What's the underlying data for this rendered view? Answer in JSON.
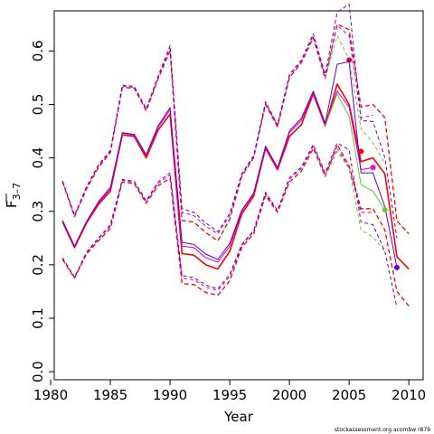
{
  "chart_data": {
    "type": "line",
    "xlabel": "Year",
    "ylabel": "F̅ 3–7",
    "ylabel_main": "F",
    "ylabel_sub": "3–7",
    "xlim": [
      1980.3,
      2011.2
    ],
    "ylim": [
      -0.015,
      0.675
    ],
    "x_ticks": [
      1980,
      1985,
      1990,
      1995,
      2000,
      2005,
      2010
    ],
    "y_ticks": [
      0.0,
      0.1,
      0.2,
      0.3,
      0.4,
      0.5,
      0.6
    ],
    "y_tick_labels": [
      "0.0",
      "0.1",
      "0.2",
      "0.3",
      "0.4",
      "0.5",
      "0.6"
    ],
    "grid": false,
    "footnote": "stockassessment.org acombw r879",
    "series": [
      {
        "color": "#ff0000",
        "width": 1.6,
        "dash": "solid",
        "endpoint": false,
        "x": [
          1981,
          1982,
          1983,
          1984,
          1985,
          1986,
          1987,
          1988,
          1989,
          1990,
          1991,
          1992,
          1993,
          1994,
          1995,
          1996,
          1997,
          1998,
          1999,
          2000,
          2001,
          2002,
          2003,
          2004,
          2005,
          2006,
          2007,
          2008,
          2009,
          2010
        ],
        "y": [
          0.28,
          0.232,
          0.278,
          0.313,
          0.338,
          0.443,
          0.44,
          0.4,
          0.452,
          0.482,
          0.221,
          0.218,
          0.2,
          0.192,
          0.225,
          0.295,
          0.328,
          0.418,
          0.378,
          0.44,
          0.462,
          0.52,
          0.46,
          0.538,
          0.5,
          0.393,
          0.4,
          0.37,
          0.215,
          0.192
        ]
      },
      {
        "color": "#ff0000",
        "width": 1.3,
        "dash": "5,3",
        "endpoint": false,
        "x": [
          1981,
          1982,
          1983,
          1984,
          1985,
          1986,
          1987,
          1988,
          1989,
          1990,
          1991,
          1992,
          1993,
          1994,
          1995,
          1996,
          1997,
          1998,
          1999,
          2000,
          2001,
          2002,
          2003,
          2004,
          2005,
          2006,
          2007,
          2008,
          2009,
          2010
        ],
        "y": [
          0.355,
          0.29,
          0.342,
          0.382,
          0.41,
          0.532,
          0.53,
          0.488,
          0.548,
          0.6,
          0.283,
          0.28,
          0.26,
          0.245,
          0.285,
          0.365,
          0.4,
          0.5,
          0.458,
          0.55,
          0.578,
          0.625,
          0.548,
          0.65,
          0.64,
          0.495,
          0.5,
          0.475,
          0.282,
          0.258
        ]
      },
      {
        "color": "#ff0000",
        "width": 1.3,
        "dash": "5,3",
        "endpoint": false,
        "x": [
          1981,
          1982,
          1983,
          1984,
          1985,
          1986,
          1987,
          1988,
          1989,
          1990,
          1991,
          1992,
          1993,
          1994,
          1995,
          1996,
          1997,
          1998,
          1999,
          2000,
          2001,
          2002,
          2003,
          2004,
          2005,
          2006,
          2007,
          2008,
          2009,
          2010
        ],
        "y": [
          0.21,
          0.175,
          0.22,
          0.245,
          0.268,
          0.355,
          0.352,
          0.315,
          0.348,
          0.362,
          0.165,
          0.163,
          0.148,
          0.143,
          0.17,
          0.232,
          0.258,
          0.33,
          0.298,
          0.355,
          0.375,
          0.418,
          0.365,
          0.425,
          0.385,
          0.305,
          0.305,
          0.265,
          0.15,
          0.123
        ]
      },
      {
        "color": "#cc00cc",
        "width": 1.0,
        "dash": "solid",
        "endpoint": true,
        "x": [
          1981,
          1982,
          1983,
          1984,
          1985,
          1986,
          1987,
          1988,
          1989,
          1990,
          1991,
          1992,
          1993,
          1994,
          1995,
          1996,
          1997,
          1998,
          1999,
          2000,
          2001,
          2002,
          2003,
          2004,
          2005,
          2006,
          2007
        ],
        "y": [
          0.282,
          0.234,
          0.28,
          0.316,
          0.342,
          0.446,
          0.442,
          0.404,
          0.457,
          0.49,
          0.235,
          0.232,
          0.213,
          0.205,
          0.235,
          0.3,
          0.332,
          0.42,
          0.38,
          0.447,
          0.47,
          0.522,
          0.462,
          0.525,
          0.495,
          0.378,
          0.382
        ]
      },
      {
        "color": "#cc00cc",
        "width": 1.0,
        "dash": "4,3",
        "endpoint": false,
        "x": [
          1981,
          1982,
          1983,
          1984,
          1985,
          1986,
          1987,
          1988,
          1989,
          1990,
          1991,
          1992,
          1993,
          1994,
          1995,
          1996,
          1997,
          1998,
          1999,
          2000,
          2001,
          2002,
          2003,
          2004,
          2005,
          2006,
          2007
        ],
        "y": [
          0.356,
          0.292,
          0.345,
          0.385,
          0.412,
          0.534,
          0.532,
          0.49,
          0.55,
          0.605,
          0.298,
          0.292,
          0.272,
          0.258,
          0.292,
          0.368,
          0.402,
          0.502,
          0.46,
          0.553,
          0.58,
          0.628,
          0.552,
          0.648,
          0.628,
          0.475,
          0.48
        ]
      },
      {
        "color": "#cc00cc",
        "width": 1.0,
        "dash": "4,3",
        "endpoint": false,
        "x": [
          1981,
          1982,
          1983,
          1984,
          1985,
          1986,
          1987,
          1988,
          1989,
          1990,
          1991,
          1992,
          1993,
          1994,
          1995,
          1996,
          1997,
          1998,
          1999,
          2000,
          2001,
          2002,
          2003,
          2004,
          2005,
          2006,
          2007
        ],
        "y": [
          0.212,
          0.176,
          0.222,
          0.248,
          0.272,
          0.358,
          0.354,
          0.318,
          0.352,
          0.368,
          0.175,
          0.172,
          0.158,
          0.152,
          0.178,
          0.236,
          0.262,
          0.333,
          0.3,
          0.36,
          0.38,
          0.422,
          0.368,
          0.418,
          0.382,
          0.298,
          0.298
        ]
      },
      {
        "color": "#6600cc",
        "width": 1.0,
        "dash": "solid",
        "endpoint": true,
        "x": [
          1981,
          1982,
          1983,
          1984,
          1985,
          1986,
          1987,
          1988,
          1989,
          1990,
          1991,
          1992,
          1993,
          1994,
          1995,
          1996,
          1997,
          1998,
          1999,
          2000,
          2001,
          2002,
          2003,
          2004,
          2005,
          2006,
          2007,
          2008,
          2009
        ],
        "y": [
          0.283,
          0.235,
          0.281,
          0.318,
          0.345,
          0.447,
          0.444,
          0.406,
          0.46,
          0.494,
          0.242,
          0.238,
          0.22,
          0.21,
          0.24,
          0.302,
          0.334,
          0.422,
          0.382,
          0.45,
          0.474,
          0.525,
          0.465,
          0.575,
          0.58,
          0.372,
          0.372,
          0.308,
          0.195
        ]
      },
      {
        "color": "#6600cc",
        "width": 1.0,
        "dash": "4,3",
        "endpoint": false,
        "x": [
          1981,
          1982,
          1983,
          1984,
          1985,
          1986,
          1987,
          1988,
          1989,
          1990,
          1991,
          1992,
          1993,
          1994,
          1995,
          1996,
          1997,
          1998,
          1999,
          2000,
          2001,
          2002,
          2003,
          2004,
          2005,
          2006,
          2007,
          2008,
          2009
        ],
        "y": [
          0.357,
          0.293,
          0.346,
          0.387,
          0.414,
          0.536,
          0.534,
          0.492,
          0.553,
          0.61,
          0.305,
          0.298,
          0.278,
          0.262,
          0.296,
          0.37,
          0.404,
          0.505,
          0.462,
          0.556,
          0.583,
          0.632,
          0.556,
          0.672,
          0.688,
          0.47,
          0.468,
          0.4,
          0.25
        ]
      },
      {
        "color": "#6600cc",
        "width": 1.0,
        "dash": "4,3",
        "endpoint": false,
        "x": [
          1981,
          1982,
          1983,
          1984,
          1985,
          1986,
          1987,
          1988,
          1989,
          1990,
          1991,
          1992,
          1993,
          1994,
          1995,
          1996,
          1997,
          1998,
          1999,
          2000,
          2001,
          2002,
          2003,
          2004,
          2005,
          2006,
          2007,
          2008,
          2009
        ],
        "y": [
          0.213,
          0.177,
          0.224,
          0.25,
          0.275,
          0.36,
          0.356,
          0.32,
          0.355,
          0.372,
          0.18,
          0.176,
          0.162,
          0.155,
          0.182,
          0.238,
          0.264,
          0.336,
          0.302,
          0.363,
          0.383,
          0.425,
          0.372,
          0.428,
          0.415,
          0.28,
          0.275,
          0.225,
          0.12
        ]
      },
      {
        "color": "#66cc22",
        "width": 1.0,
        "dash": "solid",
        "endpoint": true,
        "x": [
          2003,
          2004,
          2005,
          2006,
          2007,
          2008
        ],
        "y": [
          0.46,
          0.52,
          0.478,
          0.35,
          0.338,
          0.303
        ]
      },
      {
        "color": "#66cc22",
        "width": 1.0,
        "dash": "4,3",
        "endpoint": false,
        "x": [
          2003,
          2004,
          2005,
          2006,
          2007,
          2008
        ],
        "y": [
          0.548,
          0.628,
          0.585,
          0.455,
          0.428,
          0.39
        ]
      },
      {
        "color": "#66cc22",
        "width": 1.0,
        "dash": "4,3",
        "endpoint": false,
        "x": [
          2003,
          2004,
          2005,
          2006,
          2007,
          2008
        ],
        "y": [
          0.365,
          0.412,
          0.38,
          0.265,
          0.252,
          0.225
        ]
      }
    ],
    "points": [
      {
        "x": 2005.0,
        "y": 0.583,
        "color": "#cc0033"
      },
      {
        "x": 2006.0,
        "y": 0.412,
        "color": "#ff0000"
      },
      {
        "x": 2007.0,
        "y": 0.382,
        "color": "#ee00ee"
      },
      {
        "x": 2008.0,
        "y": 0.303,
        "color": "#66cc22"
      },
      {
        "x": 2009.0,
        "y": 0.195,
        "color": "#6600cc"
      }
    ]
  }
}
